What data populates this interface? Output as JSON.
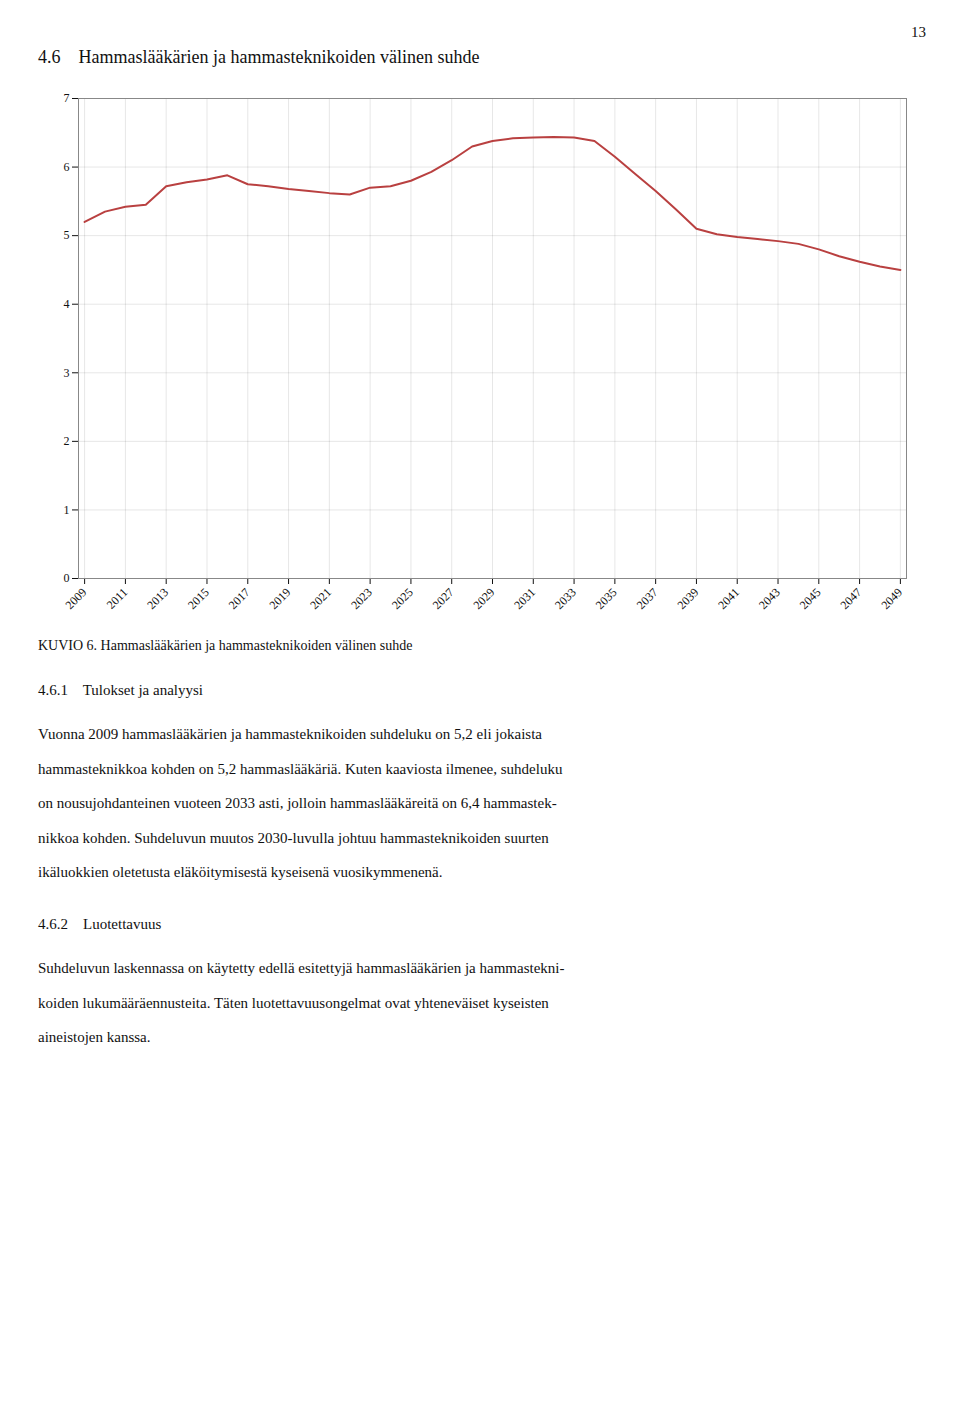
{
  "chart_data": {
    "type": "line",
    "page_number": "13",
    "title": "4.6    Hammaslääkärien ja hammasteknikoiden välinen suhde",
    "caption": "KUVIO 6. Hammaslääkärien ja hammasteknikoiden välinen suhde",
    "annotations": [
      "4.6.1    Tulokset ja analyysi",
      [
        "Vuonna 2009 hammaslääkärien ja hammasteknikoiden suhdeluku on 5,2 eli jokaista",
        "hammasteknikkoa kohden on 5,2 hammaslääkäriä. Kuten kaaviosta ilmenee, suhdeluku",
        "on nousujohdanteinen vuoteen 2033 asti, jolloin hammaslääkäreitä on 6,4 hammastek-",
        "nikkoa kohden. Suhdeluvun muutos 2030-luvulla johtuu hammasteknikoiden suurten",
        "ikäluokkien oletetusta eläköitymisestä kyseisenä vuosikymmenenä."
      ],
      "4.6.2    Luotettavuus",
      [
        "Suhdeluvun laskennassa on käytetty edellä esitettyjä hammaslääkärien ja hammastekni-",
        "koiden lukumääräennusteita. Täten luotettavuusongelmat ovat yhteneväiset kyseisten",
        "aineistojen kanssa."
      ]
    ],
    "x": [
      2009,
      2010,
      2011,
      2012,
      2013,
      2014,
      2015,
      2016,
      2017,
      2018,
      2019,
      2020,
      2021,
      2022,
      2023,
      2024,
      2025,
      2026,
      2027,
      2028,
      2029,
      2030,
      2031,
      2032,
      2033,
      2034,
      2035,
      2036,
      2037,
      2038,
      2039,
      2040,
      2041,
      2042,
      2043,
      2044,
      2045,
      2046,
      2047,
      2048,
      2049
    ],
    "values": [
      5.2,
      5.35,
      5.42,
      5.45,
      5.72,
      5.78,
      5.82,
      5.88,
      5.75,
      5.72,
      5.68,
      5.65,
      5.62,
      5.6,
      5.7,
      5.72,
      5.8,
      5.93,
      6.1,
      6.3,
      6.38,
      6.42,
      6.43,
      6.44,
      6.43,
      6.38,
      6.15,
      5.9,
      5.65,
      5.38,
      5.1,
      5.02,
      4.98,
      4.95,
      4.92,
      4.88,
      4.8,
      4.7,
      4.62,
      4.55,
      4.5
    ],
    "color": "#b94040",
    "xlim": [
      2008.7,
      2049.3
    ],
    "xticks": [
      2009,
      2011,
      2013,
      2015,
      2017,
      2019,
      2021,
      2023,
      2025,
      2027,
      2029,
      2031,
      2033,
      2035,
      2037,
      2039,
      2041,
      2043,
      2045,
      2047,
      2049
    ],
    "ylim": [
      0,
      7
    ],
    "yticks": [
      0,
      1,
      2,
      3,
      4,
      5,
      6,
      7
    ],
    "grid": true
  }
}
